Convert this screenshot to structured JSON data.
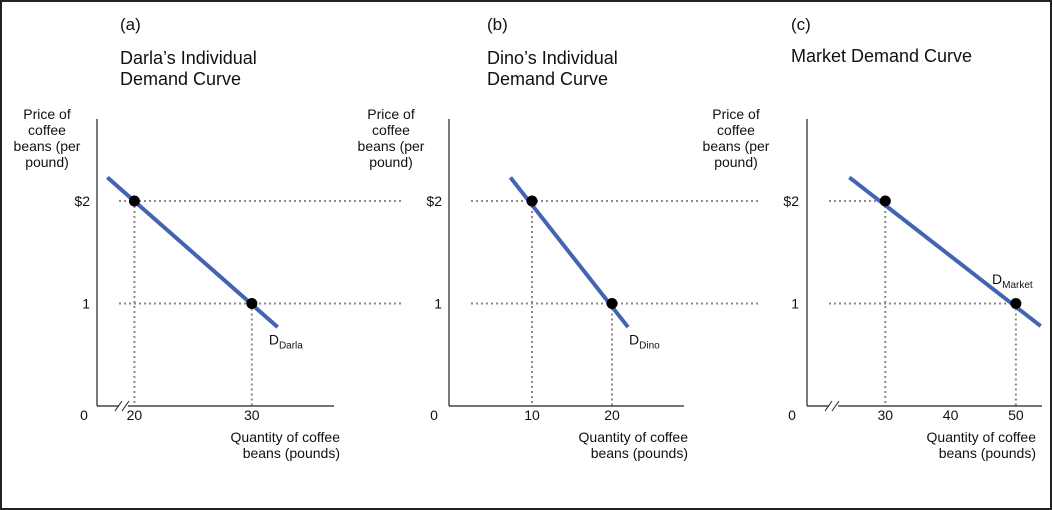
{
  "chart_data": [
    {
      "type": "line",
      "panel_label": "(a)",
      "title": "Darla’s Individual Demand Curve",
      "ylabel": "Price of coffee beans (per pound)",
      "xlabel": "Quantity of coffee beans (pounds)",
      "x_ticks": [
        "20",
        "30"
      ],
      "y_ticks": [
        "$2",
        "1"
      ],
      "origin_label": "0",
      "axis_break": true,
      "xlim": [
        10,
        37
      ],
      "ylim": [
        0,
        2.95
      ],
      "series": [
        {
          "name": "D",
          "name_subscript": "Darla",
          "color": "#4364b3",
          "line": {
            "x": [
              17.7,
              32.2
            ],
            "y": [
              2.23,
              0.77
            ]
          },
          "points": [
            {
              "x": 20,
              "y": 2
            },
            {
              "x": 30,
              "y": 1
            }
          ]
        }
      ],
      "gridlines": "dotted guides at marked points"
    },
    {
      "type": "line",
      "panel_label": "(b)",
      "title": "Dino’s Individual Demand Curve",
      "ylabel": "Price of coffee beans (per pound)",
      "xlabel": "Quantity of coffee beans (pounds)",
      "x_ticks": [
        "10",
        "20"
      ],
      "y_ticks": [
        "$2",
        "1"
      ],
      "origin_label": "0",
      "axis_break": false,
      "xlim": [
        0,
        29
      ],
      "ylim": [
        0,
        2.95
      ],
      "series": [
        {
          "name": "D",
          "name_subscript": "Dino",
          "color": "#4364b3",
          "line": {
            "x": [
              7.3,
              22.0
            ],
            "y": [
              2.23,
              0.77
            ]
          },
          "points": [
            {
              "x": 10,
              "y": 2
            },
            {
              "x": 20,
              "y": 1
            }
          ]
        }
      ],
      "gridlines": "dotted guides at marked points"
    },
    {
      "type": "line",
      "panel_label": "(c)",
      "title": "Market Demand Curve",
      "ylabel": "Price of coffee beans (per pound)",
      "xlabel": "Quantity of coffee beans (pounds)",
      "x_ticks": [
        "30",
        "40",
        "50"
      ],
      "y_ticks": [
        "$2",
        "1"
      ],
      "origin_label": "0",
      "axis_break": true,
      "xlim": [
        20,
        54
      ],
      "ylim": [
        0,
        2.95
      ],
      "series": [
        {
          "name": "D",
          "name_subscript": "Market",
          "color": "#4364b3",
          "line": {
            "x": [
              24.5,
              53.8
            ],
            "y": [
              2.23,
              0.78
            ]
          },
          "points": [
            {
              "x": 30,
              "y": 2
            },
            {
              "x": 50,
              "y": 1
            }
          ]
        }
      ],
      "gridlines": "dotted guides at marked points"
    }
  ]
}
